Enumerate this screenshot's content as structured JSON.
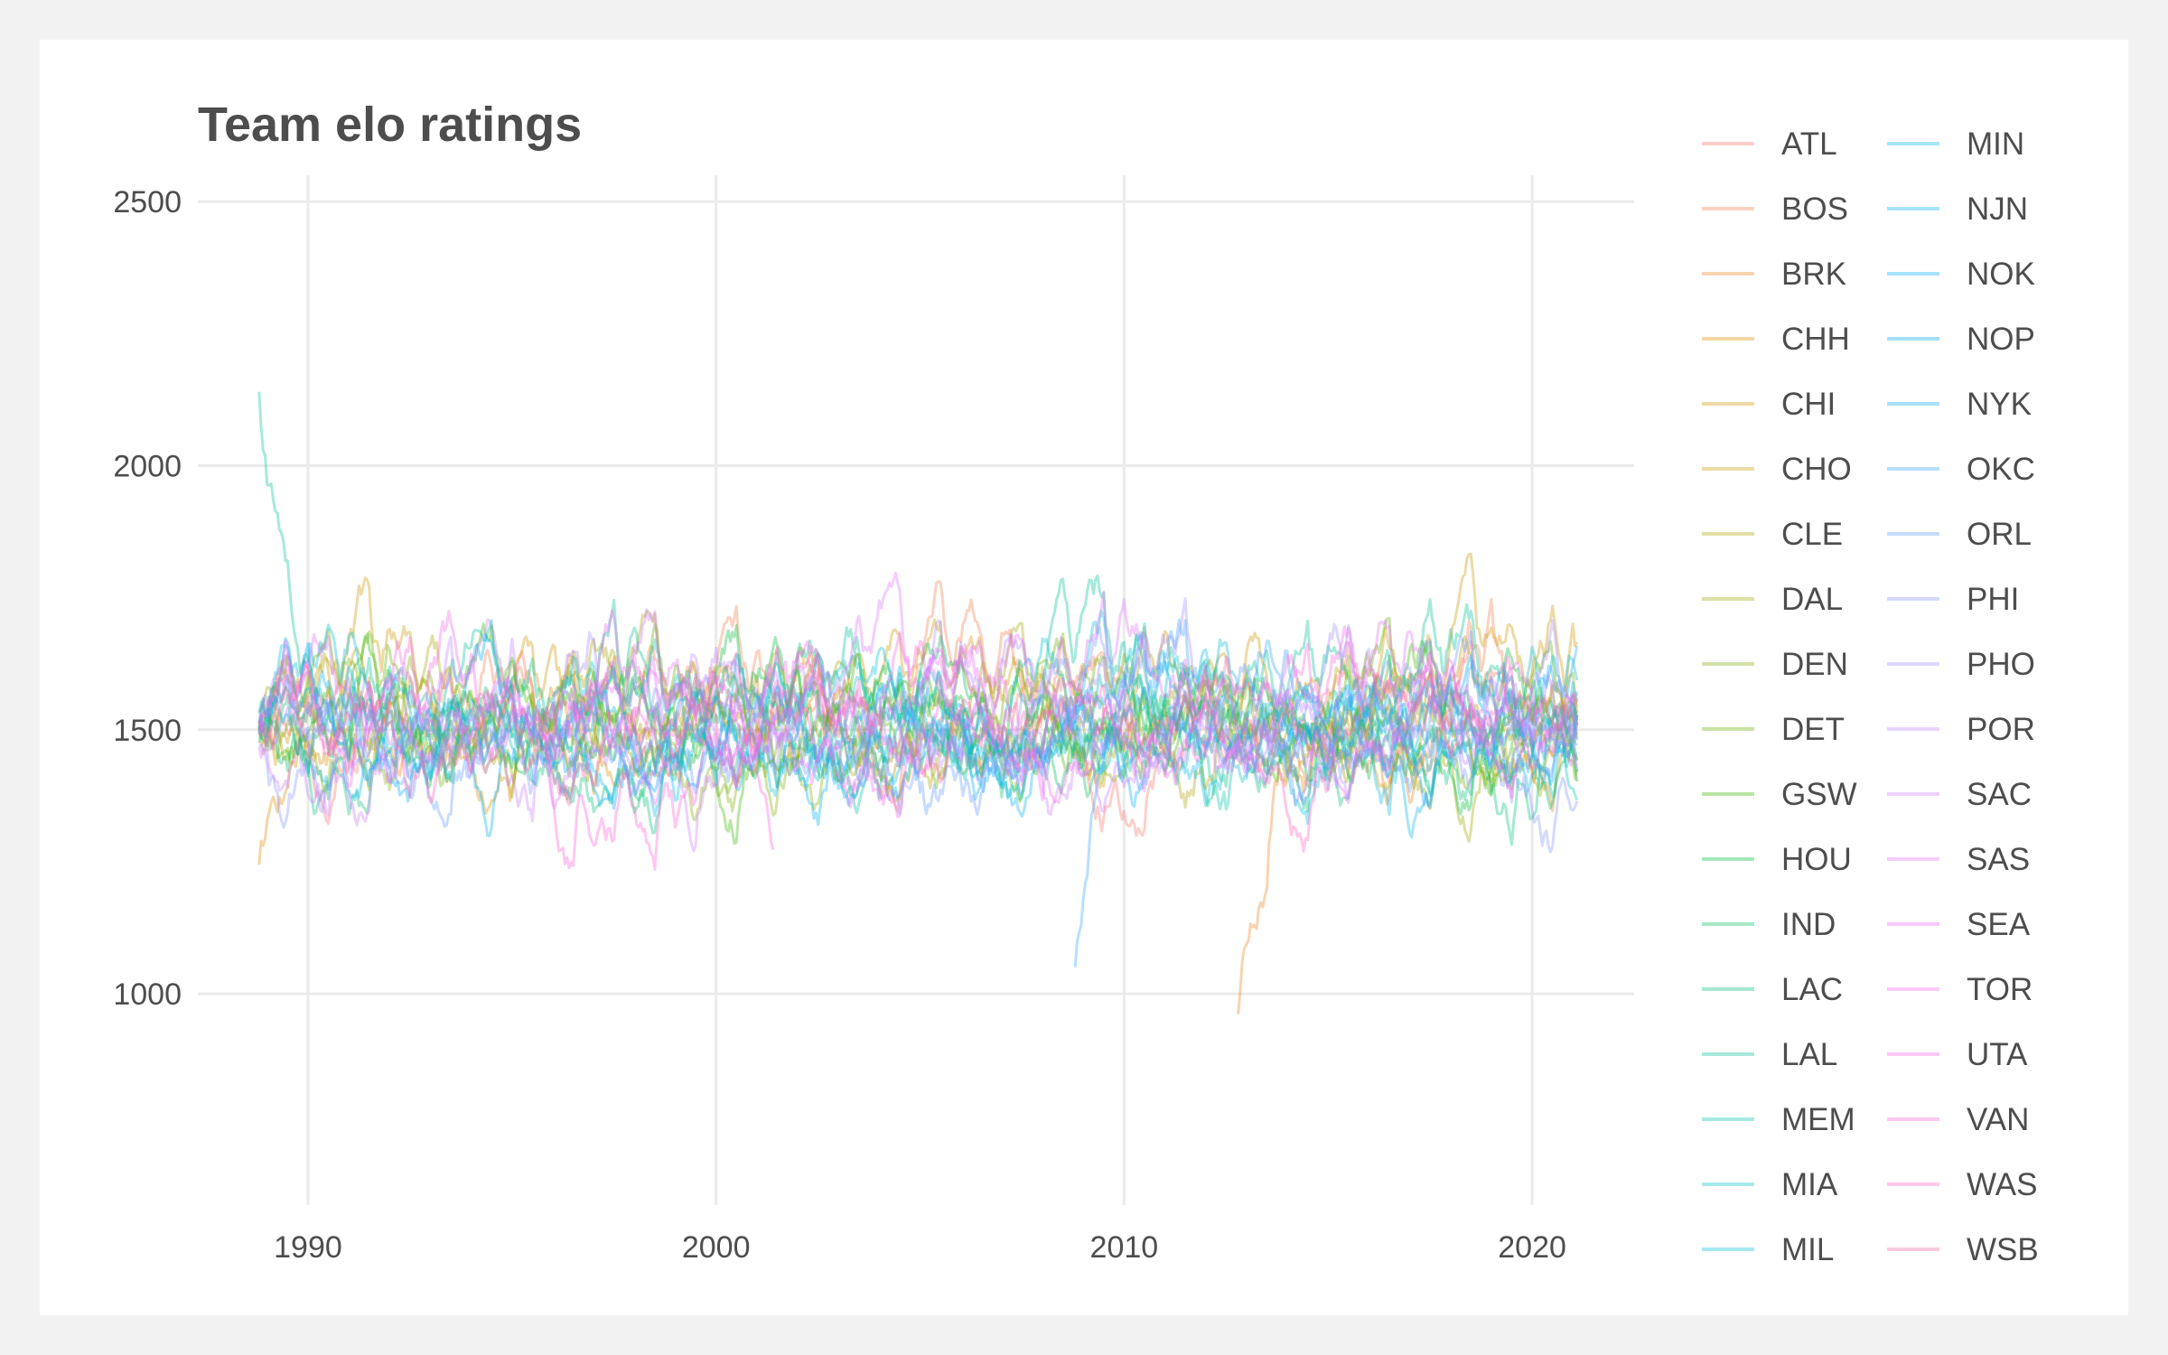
{
  "chart_data": {
    "type": "line",
    "title": "Team elo ratings",
    "xlabel": "",
    "ylabel": "",
    "xlim": [
      1987.3,
      2022.5
    ],
    "ylim": [
      600,
      2550
    ],
    "x_ticks": [
      1990,
      2000,
      2010,
      2020
    ],
    "x_tick_labels": [
      "1990",
      "2000",
      "2010",
      "2020"
    ],
    "y_ticks": [
      1000,
      1500,
      2000,
      2500
    ],
    "y_tick_labels": [
      "1000",
      "1500",
      "2000",
      "2500"
    ],
    "grid": true,
    "line_opacity": 0.35,
    "legend_position": "right",
    "legend_columns": 2,
    "series": [
      {
        "name": "ATL",
        "color": "#F8766D",
        "start": 1988.8,
        "end": 2021.1,
        "base": 1500,
        "amp": 220
      },
      {
        "name": "BOS",
        "color": "#F07F4E",
        "start": 1988.8,
        "end": 2021.1,
        "base": 1580,
        "amp": 230
      },
      {
        "name": "BRK",
        "color": "#E7851E",
        "start": 2012.8,
        "end": 2021.1,
        "base": 1450,
        "amp": 200,
        "first": 780
      },
      {
        "name": "CHH",
        "color": "#DC8B00",
        "start": 1988.8,
        "end": 2002.4,
        "base": 1480,
        "amp": 200,
        "first": 1150
      },
      {
        "name": "CHI",
        "color": "#CF9400",
        "start": 1988.8,
        "end": 2021.1,
        "base": 1600,
        "amp": 260
      },
      {
        "name": "CHO",
        "color": "#C19A00",
        "start": 2014.8,
        "end": 2021.1,
        "base": 1450,
        "amp": 180
      },
      {
        "name": "CLE",
        "color": "#B0A000",
        "start": 1988.8,
        "end": 2021.1,
        "base": 1500,
        "amp": 230
      },
      {
        "name": "DAL",
        "color": "#9DA700",
        "start": 1988.8,
        "end": 2021.1,
        "base": 1520,
        "amp": 220
      },
      {
        "name": "DEN",
        "color": "#85AD00",
        "start": 1988.8,
        "end": 2021.1,
        "base": 1510,
        "amp": 210
      },
      {
        "name": "DET",
        "color": "#68B100",
        "start": 1988.8,
        "end": 2021.1,
        "base": 1560,
        "amp": 220
      },
      {
        "name": "GSW",
        "color": "#39B600",
        "start": 1988.8,
        "end": 2021.1,
        "base": 1520,
        "amp": 230
      },
      {
        "name": "HOU",
        "color": "#00BA38",
        "start": 1988.8,
        "end": 2021.1,
        "base": 1560,
        "amp": 210
      },
      {
        "name": "IND",
        "color": "#00BD5C",
        "start": 1988.8,
        "end": 2021.1,
        "base": 1540,
        "amp": 200
      },
      {
        "name": "LAC",
        "color": "#00C07A",
        "start": 1988.8,
        "end": 2021.1,
        "base": 1470,
        "amp": 220
      },
      {
        "name": "LAL",
        "color": "#00C094",
        "start": 1988.8,
        "end": 2021.1,
        "base": 1620,
        "amp": 250,
        "first": 2350
      },
      {
        "name": "MEM",
        "color": "#00C0AC",
        "start": 2001.8,
        "end": 2021.1,
        "base": 1480,
        "amp": 210
      },
      {
        "name": "MIA",
        "color": "#00BFC4",
        "start": 1988.8,
        "end": 2021.1,
        "base": 1520,
        "amp": 220
      },
      {
        "name": "MIL",
        "color": "#00BCD8",
        "start": 1988.8,
        "end": 2021.1,
        "base": 1520,
        "amp": 210
      },
      {
        "name": "MIN",
        "color": "#00B8E7",
        "start": 1989.8,
        "end": 2021.1,
        "base": 1440,
        "amp": 200
      },
      {
        "name": "NJN",
        "color": "#00B2F3",
        "start": 1988.8,
        "end": 2012.4,
        "base": 1460,
        "amp": 220
      },
      {
        "name": "NOK",
        "color": "#00ABFD",
        "start": 2005.8,
        "end": 2007.4,
        "base": 1450,
        "amp": 150
      },
      {
        "name": "NOP",
        "color": "#00A5FF",
        "start": 2013.8,
        "end": 2021.1,
        "base": 1480,
        "amp": 180
      },
      {
        "name": "NYK",
        "color": "#00A9FF",
        "start": 1988.8,
        "end": 2021.1,
        "base": 1500,
        "amp": 220
      },
      {
        "name": "OKC",
        "color": "#35A2FF",
        "start": 2008.8,
        "end": 2021.1,
        "base": 1560,
        "amp": 230,
        "first": 930
      },
      {
        "name": "ORL",
        "color": "#619CFF",
        "start": 1989.8,
        "end": 2021.1,
        "base": 1480,
        "amp": 220
      },
      {
        "name": "PHI",
        "color": "#8494FF",
        "start": 1988.8,
        "end": 2021.1,
        "base": 1480,
        "amp": 230
      },
      {
        "name": "PHO",
        "color": "#A18CFF",
        "start": 1988.8,
        "end": 2021.1,
        "base": 1560,
        "amp": 230
      },
      {
        "name": "POR",
        "color": "#B983FF",
        "start": 1988.8,
        "end": 2021.1,
        "base": 1560,
        "amp": 210
      },
      {
        "name": "SAC",
        "color": "#CB7BFF",
        "start": 1988.8,
        "end": 2021.1,
        "base": 1450,
        "amp": 200
      },
      {
        "name": "SAS",
        "color": "#DB72FB",
        "start": 1988.8,
        "end": 2021.1,
        "base": 1620,
        "amp": 240
      },
      {
        "name": "SEA",
        "color": "#E76BF3",
        "start": 1988.8,
        "end": 2008.4,
        "base": 1540,
        "amp": 220
      },
      {
        "name": "TOR",
        "color": "#F066EA",
        "start": 1995.8,
        "end": 2021.1,
        "base": 1520,
        "amp": 220
      },
      {
        "name": "UTA",
        "color": "#F763E0",
        "start": 1988.8,
        "end": 2021.1,
        "base": 1580,
        "amp": 220
      },
      {
        "name": "VAN",
        "color": "#FC61D5",
        "start": 1995.8,
        "end": 2001.4,
        "base": 1250,
        "amp": 120
      },
      {
        "name": "WAS",
        "color": "#FF62BC",
        "start": 1997.8,
        "end": 2021.1,
        "base": 1460,
        "amp": 210
      },
      {
        "name": "WSB",
        "color": "#FF65AC",
        "start": 1988.8,
        "end": 1997.4,
        "base": 1460,
        "amp": 200
      }
    ]
  }
}
